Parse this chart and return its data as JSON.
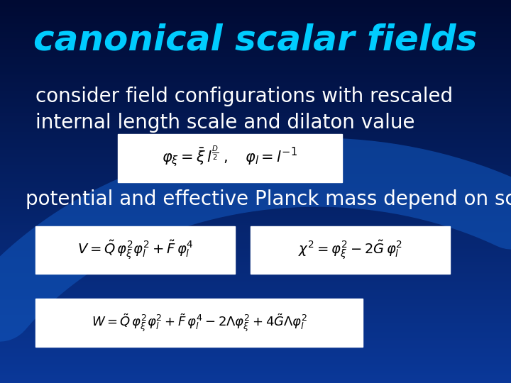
{
  "title": "canonical scalar fields",
  "title_color": "#00CCFF",
  "title_fontsize": 36,
  "bg_color_top": "#000033",
  "bg_color_bottom": "#0033AA",
  "text_color": "white",
  "body_fontsize": 20,
  "line1": "consider field configurations with rescaled",
  "line2": "internal length scale and dilaton value",
  "line3": "potential and effective Planck mass depend on scalar fields",
  "eq1": "$\\varphi_\\xi = \\bar{\\xi}\\, l^{\\frac{D}{2}} \\;,\\quad \\varphi_l = l^{-1}$",
  "eq2": "$V = \\tilde{Q}\\,\\varphi_\\xi^2\\varphi_l^2 + \\tilde{F}\\,\\varphi_l^4$",
  "eq3": "$\\chi^2 = \\varphi_\\xi^2 - 2\\tilde{G}\\,\\varphi_l^2$",
  "eq4": "$W = \\tilde{Q}\\,\\varphi_\\xi^2\\varphi_l^2 + \\tilde{F}\\,\\varphi_l^4 - 2\\Lambda\\varphi_\\xi^2 + 4\\tilde{G}\\Lambda\\varphi_l^2$"
}
